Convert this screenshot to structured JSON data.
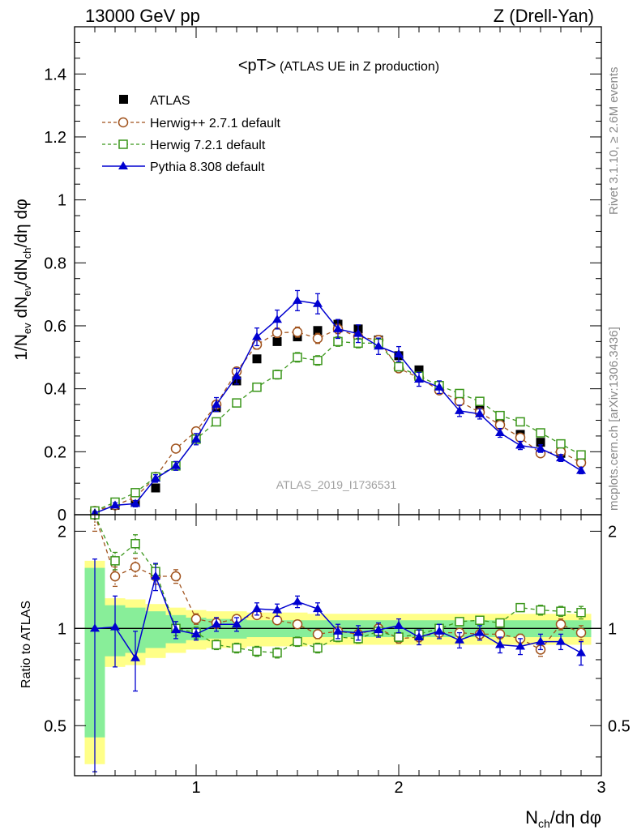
{
  "header": {
    "energy": "13000 GeV pp",
    "process": "Z (Drell-Yan)"
  },
  "plot_title": {
    "main": "<pT>",
    "sub": "(ATLAS UE in Z production)"
  },
  "analysis_tag": "ATLAS_2019_I1736531",
  "side_labels": {
    "rivet": "Rivet 3.1.10, ≥ 2.6M events",
    "mcplots": "mcplots.cern.ch [arXiv:1306.3436]"
  },
  "axes": {
    "ylabel_main": "1/N_ev dN_ev/dN_ch/dη dφ",
    "ylabel_ratio": "Ratio to ATLAS",
    "xlabel": "N_ch/dη dφ"
  },
  "chart_data": {
    "type": "scatter",
    "x": [
      0.5,
      0.6,
      0.7,
      0.8,
      0.9,
      1.0,
      1.1,
      1.2,
      1.3,
      1.4,
      1.5,
      1.6,
      1.7,
      1.8,
      1.9,
      2.0,
      2.1,
      2.2,
      2.3,
      2.4,
      2.5,
      2.6,
      2.7,
      2.8,
      2.9
    ],
    "xlim": [
      0.4,
      3.0
    ],
    "ylim": [
      0,
      1.55
    ],
    "ratio_ylim": [
      0.35,
      2.25
    ],
    "ratio_log": true,
    "x_ticks": [
      "1",
      "2",
      "3"
    ],
    "x_tick_values": [
      1,
      2,
      3
    ],
    "y_ticks": [
      "0",
      "0.2",
      "0.4",
      "0.6",
      "0.8",
      "1",
      "1.2",
      "1.4"
    ],
    "y_tick_values": [
      0,
      0.2,
      0.4,
      0.6,
      0.8,
      1.0,
      1.2,
      1.4
    ],
    "ratio_ticks": [
      "0.5",
      "1",
      "2"
    ],
    "ratio_tick_values": [
      0.5,
      1,
      2
    ],
    "series": [
      {
        "name": "ATLAS",
        "color": "#000000",
        "marker": "square-filled",
        "values": [
          0.005,
          0.03,
          0.04,
          0.085,
          0.155,
          0.25,
          0.34,
          0.425,
          0.495,
          0.55,
          0.565,
          0.585,
          0.605,
          0.59,
          0.555,
          0.505,
          0.46,
          0.41,
          0.37,
          0.34,
          0.3,
          0.255,
          0.23,
          0.195,
          0.17
        ],
        "errors": [
          0.005,
          0.005,
          0.006,
          0.006,
          0.006,
          0.006,
          0.006,
          0.006,
          0.006,
          0.006,
          0.007,
          0.007,
          0.007,
          0.007,
          0.007,
          0.007,
          0.007,
          0.007,
          0.006,
          0.006,
          0.006,
          0.006,
          0.006,
          0.006,
          0.006
        ],
        "ratio_band_outer": [
          0.38,
          0.76,
          0.77,
          0.81,
          0.84,
          0.86,
          0.87,
          0.87,
          0.88,
          0.88,
          0.88,
          0.89,
          0.89,
          0.89,
          0.89,
          0.89,
          0.89,
          0.89,
          0.89,
          0.89,
          0.89,
          0.89,
          0.89,
          0.89,
          0.89
        ],
        "ratio_band_inner": [
          0.46,
          0.82,
          0.84,
          0.87,
          0.9,
          0.92,
          0.93,
          0.93,
          0.94,
          0.94,
          0.94,
          0.94,
          0.94,
          0.94,
          0.94,
          0.94,
          0.94,
          0.94,
          0.94,
          0.94,
          0.94,
          0.94,
          0.94,
          0.94,
          0.94
        ]
      },
      {
        "name": "Herwig++ 2.7.1 default",
        "color": "#a0521c",
        "marker": "circle-open",
        "values": [
          0.012,
          0.03,
          0.055,
          0.12,
          0.21,
          0.265,
          0.35,
          0.455,
          0.54,
          0.578,
          0.58,
          0.56,
          0.59,
          0.565,
          0.555,
          0.465,
          0.435,
          0.395,
          0.36,
          0.325,
          0.285,
          0.245,
          0.195,
          0.2,
          0.165
        ],
        "errors": [
          0.004,
          0.004,
          0.005,
          0.007,
          0.009,
          0.01,
          0.012,
          0.013,
          0.014,
          0.015,
          0.016,
          0.016,
          0.015,
          0.015,
          0.014,
          0.013,
          0.012,
          0.011,
          0.011,
          0.01,
          0.01,
          0.009,
          0.009,
          0.008,
          0.008
        ],
        "ratio": [
          2.3,
          1.45,
          1.55,
          1.45,
          1.45,
          1.07,
          1.04,
          1.07,
          1.1,
          1.06,
          1.03,
          0.96,
          0.98,
          0.96,
          1.0,
          0.93,
          0.94,
          0.97,
          0.97,
          0.96,
          0.96,
          0.93,
          0.86,
          1.03,
          0.97
        ],
        "ratio_errors": [
          0.3,
          0.1,
          0.1,
          0.08,
          0.07,
          0.04,
          0.04,
          0.03,
          0.03,
          0.03,
          0.03,
          0.03,
          0.03,
          0.03,
          0.03,
          0.03,
          0.03,
          0.03,
          0.03,
          0.03,
          0.03,
          0.03,
          0.04,
          0.04,
          0.05
        ]
      },
      {
        "name": "Herwig 7.2.1 default",
        "color": "#3a961a",
        "marker": "square-open",
        "values": [
          0.012,
          0.04,
          0.07,
          0.12,
          0.155,
          0.24,
          0.295,
          0.355,
          0.405,
          0.445,
          0.5,
          0.49,
          0.55,
          0.545,
          0.545,
          0.47,
          0.44,
          0.41,
          0.385,
          0.36,
          0.315,
          0.295,
          0.26,
          0.225,
          0.19
        ],
        "errors": [
          0.004,
          0.004,
          0.005,
          0.007,
          0.008,
          0.01,
          0.011,
          0.012,
          0.013,
          0.014,
          0.015,
          0.015,
          0.015,
          0.015,
          0.014,
          0.013,
          0.012,
          0.011,
          0.011,
          0.01,
          0.01,
          0.009,
          0.009,
          0.008,
          0.008
        ],
        "ratio": [
          2.55,
          1.62,
          1.83,
          1.5,
          1.0,
          0.97,
          0.89,
          0.87,
          0.85,
          0.84,
          0.91,
          0.87,
          0.94,
          0.93,
          0.98,
          0.94,
          0.96,
          1.0,
          1.05,
          1.06,
          1.04,
          1.16,
          1.14,
          1.13,
          1.12
        ],
        "ratio_errors": [
          0.3,
          0.1,
          0.12,
          0.08,
          0.05,
          0.04,
          0.03,
          0.03,
          0.03,
          0.03,
          0.03,
          0.03,
          0.03,
          0.03,
          0.03,
          0.03,
          0.03,
          0.03,
          0.03,
          0.03,
          0.03,
          0.03,
          0.04,
          0.04,
          0.05
        ]
      },
      {
        "name": "Pythia 8.308 default",
        "color": "#0000d0",
        "marker": "triangle-filled",
        "values": [
          0.005,
          0.03,
          0.035,
          0.115,
          0.155,
          0.24,
          0.35,
          0.44,
          0.565,
          0.62,
          0.68,
          0.67,
          0.59,
          0.575,
          0.535,
          0.51,
          0.43,
          0.405,
          0.33,
          0.32,
          0.26,
          0.22,
          0.21,
          0.18,
          0.14
        ],
        "errors": [
          0.005,
          0.008,
          0.01,
          0.012,
          0.014,
          0.018,
          0.022,
          0.025,
          0.028,
          0.03,
          0.032,
          0.032,
          0.03,
          0.028,
          0.026,
          0.024,
          0.022,
          0.02,
          0.018,
          0.016,
          0.014,
          0.013,
          0.012,
          0.011,
          0.01
        ],
        "ratio": [
          1.0,
          1.01,
          0.81,
          1.45,
          0.99,
          0.96,
          1.03,
          1.03,
          1.15,
          1.14,
          1.21,
          1.15,
          0.98,
          0.97,
          0.99,
          1.02,
          0.94,
          0.98,
          0.92,
          0.97,
          0.89,
          0.88,
          0.91,
          0.91,
          0.84
        ],
        "ratio_errors": [
          0.64,
          0.25,
          0.17,
          0.14,
          0.06,
          0.04,
          0.05,
          0.05,
          0.05,
          0.05,
          0.05,
          0.05,
          0.05,
          0.05,
          0.05,
          0.05,
          0.05,
          0.05,
          0.05,
          0.05,
          0.05,
          0.05,
          0.05,
          0.05,
          0.07
        ]
      }
    ]
  }
}
